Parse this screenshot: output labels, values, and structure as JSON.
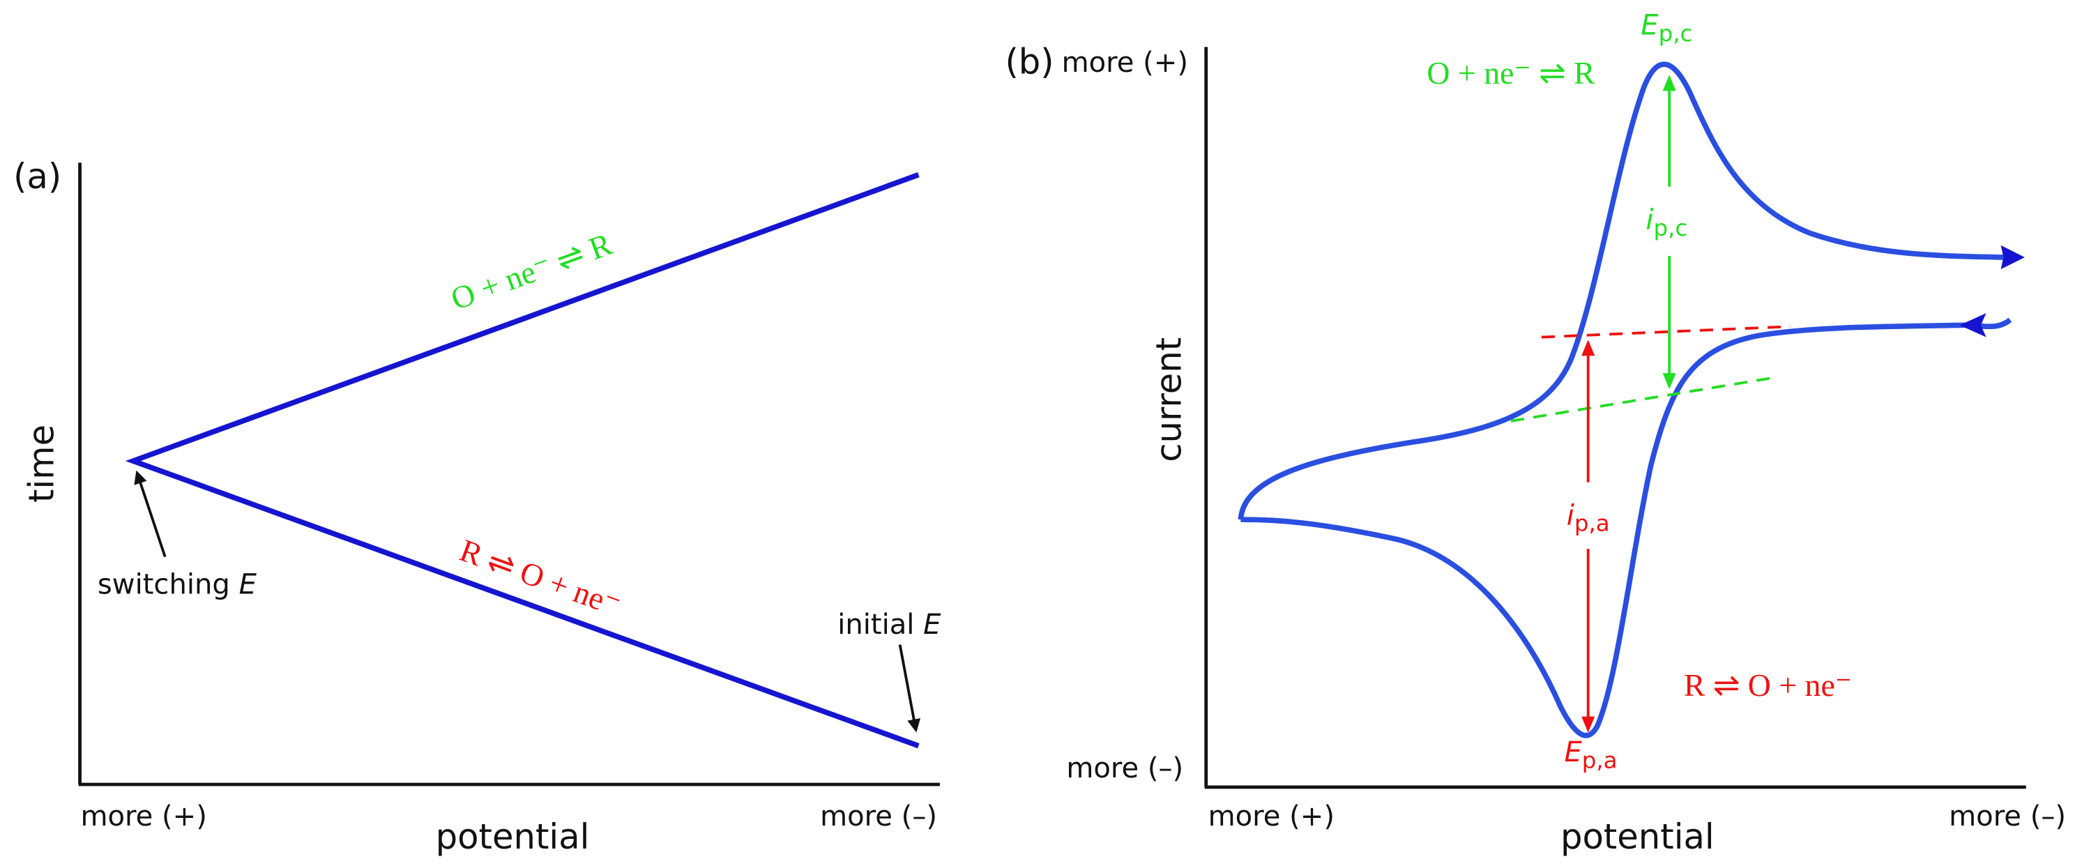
{
  "panel_a": {
    "label": "(a)",
    "y_axis_label": "time",
    "x_axis_label": "potential",
    "x_left": "more (+)",
    "x_right": "more (–)",
    "forward_reaction": "O + ne⁻ ⇌ R",
    "reverse_reaction": "R ⇌ O + ne⁻",
    "annotations": [
      {
        "text": "switching",
        "var": "E"
      },
      {
        "text": "initial",
        "var": "E"
      }
    ]
  },
  "panel_b": {
    "label": "(b)",
    "y_axis_label": "current",
    "x_axis_label": "potential",
    "y_top": "more (+)",
    "y_bottom": "more (–)",
    "x_left": "more (+)",
    "x_right": "more (–)",
    "cathodic_reaction": "O + ne⁻ ⇌ R",
    "anodic_reaction": "R ⇌ O + ne⁻",
    "peak_labels": [
      {
        "symbol": "E",
        "sub": "p,c"
      },
      {
        "symbol": "E",
        "sub": "p,a"
      }
    ],
    "current_labels": [
      {
        "symbol": "i",
        "sub": "p,c"
      },
      {
        "symbol": "i",
        "sub": "p,a"
      }
    ]
  }
}
